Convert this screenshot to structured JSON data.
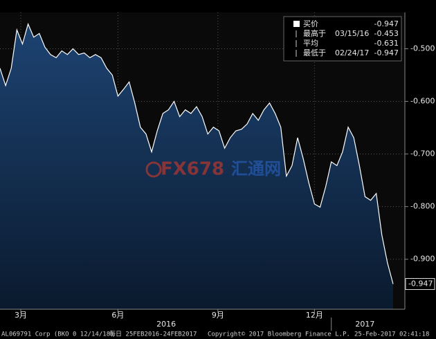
{
  "chart_data": {
    "type": "area",
    "values": [
      -0.537,
      -0.57,
      -0.537,
      -0.464,
      -0.491,
      -0.453,
      -0.478,
      -0.471,
      -0.497,
      -0.511,
      -0.517,
      -0.504,
      -0.511,
      -0.5,
      -0.511,
      -0.508,
      -0.517,
      -0.511,
      -0.517,
      -0.537,
      -0.55,
      -0.59,
      -0.577,
      -0.563,
      -0.603,
      -0.649,
      -0.662,
      -0.696,
      -0.656,
      -0.623,
      -0.616,
      -0.6,
      -0.629,
      -0.616,
      -0.623,
      -0.61,
      -0.629,
      -0.662,
      -0.649,
      -0.656,
      -0.689,
      -0.669,
      -0.656,
      -0.653,
      -0.643,
      -0.623,
      -0.636,
      -0.616,
      -0.603,
      -0.623,
      -0.649,
      -0.742,
      -0.722,
      -0.669,
      -0.709,
      -0.755,
      -0.795,
      -0.801,
      -0.762,
      -0.715,
      -0.722,
      -0.696,
      -0.649,
      -0.669,
      -0.722,
      -0.781,
      -0.788,
      -0.775,
      -0.854,
      -0.907,
      -0.947
    ],
    "color": "#ffffff",
    "fill": "#163558",
    "ylim": [
      -0.995,
      -0.431
    ],
    "yticks": [
      {
        "value": -0.5,
        "label": "-0.500"
      },
      {
        "value": -0.6,
        "label": "-0.600"
      },
      {
        "value": -0.7,
        "label": "-0.700"
      },
      {
        "value": -0.8,
        "label": "-0.800"
      },
      {
        "value": -0.9,
        "label": "-0.900"
      }
    ],
    "xticks": [
      {
        "value": 3.7,
        "label": "3月"
      },
      {
        "value": 21,
        "label": "6月"
      },
      {
        "value": 38.8,
        "label": "9月"
      },
      {
        "value": 56,
        "label": "12月"
      }
    ],
    "year_labels": [
      {
        "value": 29.6,
        "label": "2016"
      },
      {
        "value": 65,
        "label": "2017"
      }
    ],
    "year_break": 59,
    "grid": true,
    "last_value": -0.947,
    "legend": [
      {
        "label": "买价",
        "value": -0.947
      },
      {
        "label": "最高于",
        "date": "03/15/16",
        "value": -0.453
      },
      {
        "label": "平均",
        "value": -0.631
      },
      {
        "label": "最低于",
        "date": "02/24/17",
        "value": -0.947
      }
    ],
    "footer": [
      "AL069791 Corp (BKO 0 12/14/18)",
      "每日 25FEB2016-24FEB2017",
      "Copyright© 2017 Bloomberg Finance L.P.",
      "25-Feb-2017 02:41:18"
    ],
    "watermark": [
      "FX678",
      "汇通网"
    ]
  }
}
